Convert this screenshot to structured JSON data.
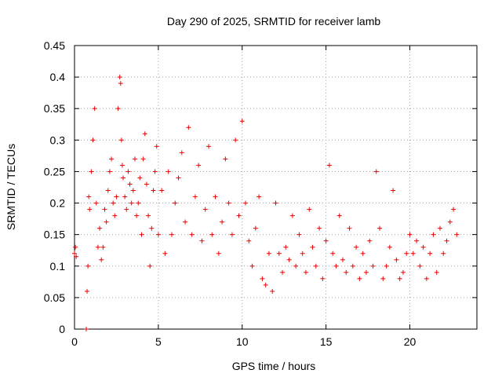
{
  "chart_data": {
    "type": "scatter",
    "title": "Day 290 of 2025, SRMTID for receiver lamb",
    "xlabel": "GPS time / hours",
    "ylabel": "SRMTID / TECUs",
    "xlim": [
      0,
      24.0
    ],
    "ylim": [
      0,
      0.45
    ],
    "xticks": [
      0,
      5,
      10,
      15,
      20
    ],
    "xtick_labels": [
      "0",
      "5",
      "10",
      "15",
      "20"
    ],
    "yticks": [
      0,
      0.05,
      0.1,
      0.15,
      0.2,
      0.25,
      0.3,
      0.35,
      0.4,
      0.45
    ],
    "ytick_labels": [
      "0",
      "0.05",
      "0.1",
      "0.15",
      "0.2",
      "0.25",
      "0.3",
      "0.35",
      "0.4",
      "0.45"
    ],
    "grid": true,
    "marker": "plus",
    "series_color": "#ee0000",
    "series": [
      {
        "name": "SRMTID",
        "x": [
          0.0,
          0.05,
          0.1,
          0.7,
          0.75,
          0.8,
          0.85,
          0.9,
          1.0,
          1.1,
          1.2,
          1.3,
          1.4,
          1.5,
          1.6,
          1.7,
          1.8,
          1.9,
          2.0,
          2.1,
          2.2,
          2.3,
          2.4,
          2.5,
          2.6,
          2.7,
          2.75,
          2.8,
          2.85,
          2.9,
          3.0,
          3.1,
          3.2,
          3.3,
          3.4,
          3.5,
          3.6,
          3.7,
          3.8,
          3.9,
          4.0,
          4.1,
          4.2,
          4.3,
          4.4,
          4.5,
          4.6,
          4.7,
          4.8,
          4.9,
          5.0,
          5.2,
          5.4,
          5.6,
          5.8,
          6.0,
          6.2,
          6.4,
          6.6,
          6.8,
          7.0,
          7.2,
          7.4,
          7.6,
          7.8,
          8.0,
          8.2,
          8.4,
          8.6,
          8.8,
          9.0,
          9.2,
          9.4,
          9.6,
          9.8,
          10.0,
          10.2,
          10.4,
          10.6,
          10.8,
          11.0,
          11.2,
          11.4,
          11.6,
          11.8,
          12.0,
          12.2,
          12.4,
          12.6,
          12.8,
          13.0,
          13.2,
          13.4,
          13.6,
          13.8,
          14.0,
          14.2,
          14.4,
          14.6,
          14.8,
          15.0,
          15.2,
          15.4,
          15.6,
          15.8,
          16.0,
          16.2,
          16.4,
          16.6,
          16.8,
          17.0,
          17.2,
          17.4,
          17.6,
          17.8,
          18.0,
          18.2,
          18.4,
          18.6,
          18.8,
          19.0,
          19.2,
          19.4,
          19.6,
          19.8,
          20.0,
          20.2,
          20.4,
          20.6,
          20.8,
          21.0,
          21.2,
          21.4,
          21.6,
          21.8,
          22.0,
          22.2,
          22.4,
          22.6,
          22.8
        ],
        "y": [
          0.12,
          0.13,
          0.115,
          0.0,
          0.06,
          0.1,
          0.21,
          0.19,
          0.25,
          0.3,
          0.35,
          0.2,
          0.13,
          0.16,
          0.11,
          0.13,
          0.19,
          0.17,
          0.22,
          0.25,
          0.27,
          0.2,
          0.18,
          0.21,
          0.35,
          0.4,
          0.39,
          0.3,
          0.26,
          0.24,
          0.21,
          0.19,
          0.25,
          0.23,
          0.2,
          0.22,
          0.27,
          0.18,
          0.2,
          0.24,
          0.15,
          0.27,
          0.31,
          0.23,
          0.18,
          0.1,
          0.16,
          0.22,
          0.25,
          0.29,
          0.15,
          0.22,
          0.12,
          0.25,
          0.15,
          0.2,
          0.24,
          0.28,
          0.17,
          0.32,
          0.15,
          0.21,
          0.26,
          0.14,
          0.19,
          0.29,
          0.15,
          0.21,
          0.12,
          0.17,
          0.27,
          0.2,
          0.15,
          0.3,
          0.18,
          0.33,
          0.2,
          0.14,
          0.1,
          0.16,
          0.21,
          0.08,
          0.07,
          0.12,
          0.06,
          0.2,
          0.12,
          0.09,
          0.13,
          0.11,
          0.18,
          0.1,
          0.15,
          0.12,
          0.09,
          0.19,
          0.13,
          0.1,
          0.16,
          0.08,
          0.14,
          0.26,
          0.12,
          0.1,
          0.18,
          0.11,
          0.09,
          0.16,
          0.1,
          0.13,
          0.08,
          0.12,
          0.09,
          0.14,
          0.1,
          0.25,
          0.16,
          0.08,
          0.1,
          0.13,
          0.22,
          0.11,
          0.08,
          0.09,
          0.12,
          0.15,
          0.12,
          0.14,
          0.1,
          0.13,
          0.08,
          0.12,
          0.15,
          0.09,
          0.16,
          0.12,
          0.14,
          0.17,
          0.19,
          0.15
        ]
      }
    ]
  }
}
